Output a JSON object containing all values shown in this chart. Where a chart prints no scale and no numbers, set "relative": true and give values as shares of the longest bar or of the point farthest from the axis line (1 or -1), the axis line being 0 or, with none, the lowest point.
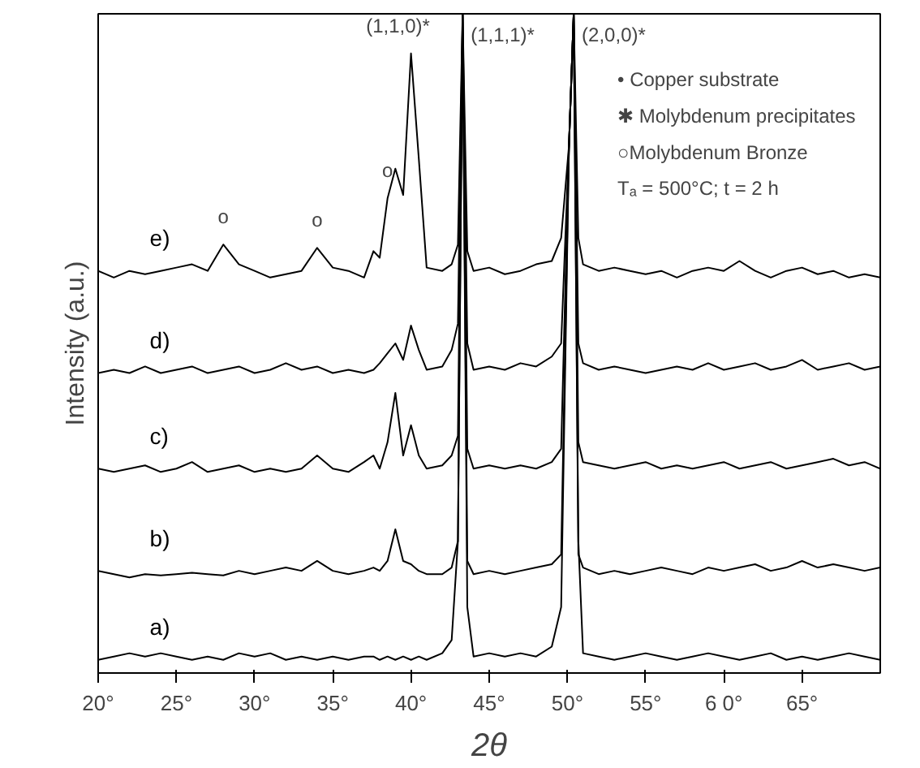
{
  "chart_data": {
    "type": "line",
    "relative": true,
    "xlabel": "2θ",
    "ylabel": "Intensity (a.u.)",
    "xlim": [
      20,
      70
    ],
    "xticks": [
      {
        "value": 20,
        "label": "20°"
      },
      {
        "value": 25,
        "label": "25°"
      },
      {
        "value": 30,
        "label": "30°"
      },
      {
        "value": 35,
        "label": "35°"
      },
      {
        "value": 40,
        "label": "40°"
      },
      {
        "value": 45,
        "label": "45°"
      },
      {
        "value": 50,
        "label": "50°"
      },
      {
        "value": 55,
        "label": "55°"
      },
      {
        "value": 60,
        "label": "6 0°"
      },
      {
        "value": 65,
        "label": "65°"
      }
    ],
    "grid": false,
    "x": [
      20,
      21,
      22,
      23,
      24,
      25,
      26,
      27,
      28,
      29,
      30,
      31,
      32,
      33,
      34,
      35,
      36,
      37,
      37.6,
      38,
      38.5,
      39,
      39.5,
      40,
      40.5,
      41,
      42,
      42.6,
      43.0,
      43.3,
      43.6,
      44,
      45,
      46,
      47,
      48,
      49,
      49.6,
      50.1,
      50.4,
      50.7,
      51,
      52,
      53,
      54,
      55,
      56,
      57,
      58,
      59,
      60,
      61,
      62,
      63,
      64,
      65,
      66,
      67,
      68,
      69,
      70
    ],
    "series": [
      {
        "name": "a)",
        "color": "#000000",
        "values": [
          0.02,
          0.025,
          0.03,
          0.025,
          0.03,
          0.025,
          0.02,
          0.025,
          0.02,
          0.03,
          0.025,
          0.03,
          0.02,
          0.025,
          0.02,
          0.025,
          0.02,
          0.025,
          0.025,
          0.02,
          0.025,
          0.02,
          0.025,
          0.02,
          0.025,
          0.02,
          0.03,
          0.05,
          0.2,
          1,
          0.1,
          0.025,
          0.03,
          0.025,
          0.03,
          0.025,
          0.04,
          0.1,
          0.8,
          1,
          0.2,
          0.03,
          0.025,
          0.02,
          0.025,
          0.03,
          0.025,
          0.02,
          0.025,
          0.03,
          0.025,
          0.02,
          0.025,
          0.03,
          0.02,
          0.025,
          0.02,
          0.025,
          0.03,
          0.025,
          0.02
        ]
      },
      {
        "name": "b)",
        "color": "#000000",
        "values": [
          0.155,
          0.15,
          0.145,
          0.15,
          0.148,
          0.15,
          0.152,
          0.15,
          0.148,
          0.155,
          0.15,
          0.155,
          0.16,
          0.155,
          0.17,
          0.155,
          0.15,
          0.155,
          0.16,
          0.155,
          0.17,
          0.218,
          0.17,
          0.165,
          0.155,
          0.15,
          0.15,
          0.16,
          0.2,
          1,
          0.17,
          0.15,
          0.155,
          0.15,
          0.155,
          0.16,
          0.165,
          0.18,
          0.8,
          1,
          0.18,
          0.16,
          0.15,
          0.155,
          0.15,
          0.155,
          0.16,
          0.155,
          0.15,
          0.16,
          0.155,
          0.16,
          0.165,
          0.155,
          0.16,
          0.17,
          0.16,
          0.165,
          0.16,
          0.155,
          0.16
        ]
      },
      {
        "name": "c)",
        "color": "#000000",
        "values": [
          0.31,
          0.305,
          0.31,
          0.315,
          0.305,
          0.31,
          0.32,
          0.305,
          0.31,
          0.315,
          0.305,
          0.31,
          0.305,
          0.31,
          0.33,
          0.31,
          0.305,
          0.32,
          0.33,
          0.31,
          0.35,
          0.425,
          0.33,
          0.376,
          0.33,
          0.31,
          0.315,
          0.33,
          0.36,
          1,
          0.34,
          0.31,
          0.315,
          0.31,
          0.315,
          0.31,
          0.32,
          0.34,
          0.8,
          1,
          0.35,
          0.32,
          0.315,
          0.31,
          0.315,
          0.32,
          0.31,
          0.315,
          0.31,
          0.315,
          0.32,
          0.31,
          0.315,
          0.32,
          0.31,
          0.315,
          0.32,
          0.325,
          0.315,
          0.32,
          0.31
        ]
      },
      {
        "name": "d)",
        "color": "#000000",
        "values": [
          0.455,
          0.46,
          0.455,
          0.465,
          0.455,
          0.46,
          0.465,
          0.455,
          0.46,
          0.465,
          0.455,
          0.46,
          0.47,
          0.46,
          0.465,
          0.455,
          0.46,
          0.455,
          0.46,
          0.47,
          0.485,
          0.5,
          0.475,
          0.527,
          0.49,
          0.46,
          0.465,
          0.49,
          0.53,
          1,
          0.5,
          0.46,
          0.465,
          0.46,
          0.47,
          0.465,
          0.48,
          0.5,
          0.8,
          1,
          0.5,
          0.47,
          0.46,
          0.465,
          0.46,
          0.455,
          0.46,
          0.465,
          0.46,
          0.47,
          0.46,
          0.465,
          0.47,
          0.46,
          0.465,
          0.475,
          0.46,
          0.465,
          0.47,
          0.46,
          0.465
        ]
      },
      {
        "name": "e)",
        "color": "#000000",
        "values": [
          0.61,
          0.6,
          0.61,
          0.605,
          0.61,
          0.615,
          0.62,
          0.61,
          0.65,
          0.62,
          0.61,
          0.6,
          0.605,
          0.61,
          0.645,
          0.615,
          0.61,
          0.6,
          0.64,
          0.63,
          0.72,
          0.765,
          0.725,
          0.94,
          0.78,
          0.615,
          0.61,
          0.62,
          0.65,
          1,
          0.64,
          0.61,
          0.615,
          0.605,
          0.61,
          0.62,
          0.625,
          0.66,
          0.8,
          1,
          0.66,
          0.62,
          0.61,
          0.615,
          0.61,
          0.605,
          0.61,
          0.6,
          0.61,
          0.615,
          0.61,
          0.625,
          0.61,
          0.6,
          0.61,
          0.615,
          0.605,
          0.61,
          0.6,
          0.605,
          0.6
        ]
      }
    ],
    "annotations": [
      {
        "text": "(1,1,0)*",
        "x": 40,
        "y": 0.94
      },
      {
        "text": "(1,1,1)*",
        "x": 43.3,
        "y": 1
      },
      {
        "text": "(2,0,0)*",
        "x": 50.4,
        "y": 1
      },
      {
        "text": "o",
        "x": 28,
        "y": 0.65
      },
      {
        "text": "o",
        "x": 34,
        "y": 0.645
      },
      {
        "text": "o",
        "x": 38.5,
        "y": 0.72
      },
      "• Copper substrate",
      "✱ Molybdenum precipitates",
      "○Molybdenum Bronze",
      "Tₐ = 500°C; t = 2 h"
    ]
  }
}
